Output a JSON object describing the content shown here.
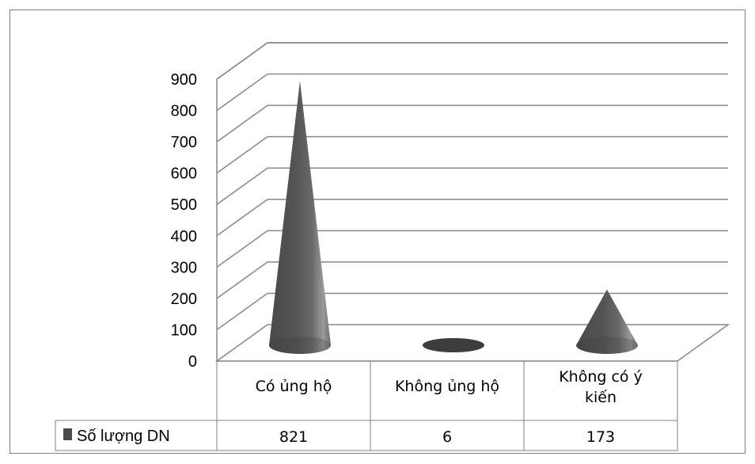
{
  "chart_data": {
    "type": "3d-cone-column-with-data-table",
    "categories": [
      "Có ủng hộ",
      "Không ủng hộ",
      "Không có ý kiến"
    ],
    "series": [
      {
        "name": "Số lượng DN",
        "values": [
          821,
          6,
          173
        ]
      }
    ],
    "y_ticks": [
      0,
      100,
      200,
      300,
      400,
      500,
      600,
      700,
      800,
      900
    ],
    "ylim": [
      0,
      900
    ],
    "grid": true,
    "legend": "data-table-left",
    "colors": {
      "cone_dark": "#3a3a3a",
      "cone_mid": "#5a5a5a",
      "cone_light": "#9a9a9a",
      "grid": "#888888",
      "axis_text": "#000000",
      "border": "#808080"
    }
  }
}
